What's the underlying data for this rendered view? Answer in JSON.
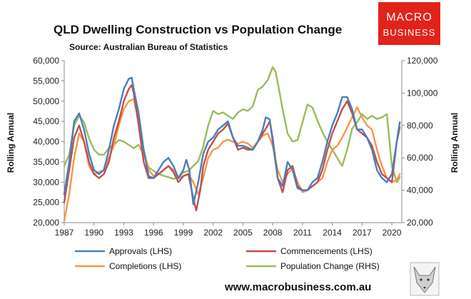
{
  "chart_data": {
    "type": "line",
    "title": "QLD Dwelling Construction vs Population Change",
    "subtitle": "Source: Australian Bureau of Statistics",
    "ylabel_left": "Rolling Annual",
    "ylabel_right": "Rolling Annual",
    "xlim": [
      1987,
      2021
    ],
    "x_ticks": [
      1987,
      1990,
      1993,
      1996,
      1999,
      2002,
      2005,
      2008,
      2011,
      2014,
      2017,
      2020
    ],
    "ylim_left": [
      20000,
      60000
    ],
    "y_ticks_left": [
      20000,
      25000,
      30000,
      35000,
      40000,
      45000,
      50000,
      55000,
      60000
    ],
    "y_ticks_left_labels": [
      "20,000",
      "25,000",
      "30,000",
      "35,000",
      "40,000",
      "45,000",
      "50,000",
      "55,000",
      "60,000"
    ],
    "ylim_right": [
      20000,
      120000
    ],
    "y_ticks_right": [
      20000,
      40000,
      60000,
      80000,
      100000,
      120000
    ],
    "y_ticks_right_labels": [
      "20,000",
      "40,000",
      "60,000",
      "80,000",
      "100,000",
      "120,000"
    ],
    "grid": false,
    "legend_position": "bottom",
    "series": [
      {
        "name": "Approvals (LHS)",
        "axis": "left",
        "color": "#4a7ebb",
        "points": [
          [
            1987,
            27000
          ],
          [
            1987.5,
            35000
          ],
          [
            1988,
            45000
          ],
          [
            1988.5,
            47000
          ],
          [
            1989,
            43000
          ],
          [
            1989.5,
            37000
          ],
          [
            1990,
            33000
          ],
          [
            1990.5,
            32000
          ],
          [
            1991,
            33000
          ],
          [
            1991.5,
            38000
          ],
          [
            1992,
            44000
          ],
          [
            1992.5,
            48000
          ],
          [
            1993,
            53000
          ],
          [
            1993.5,
            55500
          ],
          [
            1993.8,
            55800
          ],
          [
            1994,
            53000
          ],
          [
            1994.5,
            47000
          ],
          [
            1995,
            38000
          ],
          [
            1995.5,
            31500
          ],
          [
            1996,
            31000
          ],
          [
            1996.5,
            33000
          ],
          [
            1997,
            35000
          ],
          [
            1997.5,
            36000
          ],
          [
            1998,
            34000
          ],
          [
            1998.5,
            31000
          ],
          [
            1999,
            33000
          ],
          [
            1999.3,
            35500
          ],
          [
            1999.6,
            33000
          ],
          [
            2000,
            24500
          ],
          [
            2000.5,
            30000
          ],
          [
            2001,
            37000
          ],
          [
            2001.5,
            40000
          ],
          [
            2002,
            41000
          ],
          [
            2002.5,
            43000
          ],
          [
            2003,
            44000
          ],
          [
            2003.5,
            45000
          ],
          [
            2004,
            41000
          ],
          [
            2004.5,
            39000
          ],
          [
            2005,
            39000
          ],
          [
            2005.5,
            38500
          ],
          [
            2006,
            38000
          ],
          [
            2006.5,
            40000
          ],
          [
            2007,
            43000
          ],
          [
            2007.3,
            46000
          ],
          [
            2007.7,
            45500
          ],
          [
            2008,
            40000
          ],
          [
            2008.5,
            31000
          ],
          [
            2009,
            29000
          ],
          [
            2009.5,
            35000
          ],
          [
            2010,
            33000
          ],
          [
            2010.5,
            28500
          ],
          [
            2011,
            28000
          ],
          [
            2011.5,
            28000
          ],
          [
            2012,
            30000
          ],
          [
            2012.5,
            31000
          ],
          [
            2013,
            35000
          ],
          [
            2013.5,
            40000
          ],
          [
            2014,
            44000
          ],
          [
            2014.5,
            47000
          ],
          [
            2015,
            51000
          ],
          [
            2015.5,
            51000
          ],
          [
            2016,
            48000
          ],
          [
            2016.5,
            43000
          ],
          [
            2017,
            43000
          ],
          [
            2017.5,
            41000
          ],
          [
            2018,
            38000
          ],
          [
            2018.5,
            33000
          ],
          [
            2019,
            31000
          ],
          [
            2019.5,
            30000
          ],
          [
            2020,
            32000
          ],
          [
            2020.5,
            40000
          ],
          [
            2020.8,
            44800
          ]
        ]
      },
      {
        "name": "Commencements (LHS)",
        "axis": "left",
        "color": "#c0504d",
        "points": [
          [
            1987,
            25000
          ],
          [
            1987.5,
            33000
          ],
          [
            1988,
            41000
          ],
          [
            1988.5,
            44000
          ],
          [
            1989,
            40000
          ],
          [
            1989.5,
            35000
          ],
          [
            1990,
            32000
          ],
          [
            1990.5,
            31000
          ],
          [
            1991,
            32000
          ],
          [
            1991.5,
            35000
          ],
          [
            1992,
            41000
          ],
          [
            1992.5,
            45000
          ],
          [
            1993,
            50000
          ],
          [
            1993.5,
            53000
          ],
          [
            1993.8,
            54000
          ],
          [
            1994,
            52000
          ],
          [
            1994.5,
            44000
          ],
          [
            1995,
            35000
          ],
          [
            1995.5,
            31000
          ],
          [
            1996,
            31000
          ],
          [
            1996.5,
            32000
          ],
          [
            1997,
            33000
          ],
          [
            1997.5,
            34000
          ],
          [
            1998,
            32500
          ],
          [
            1998.5,
            30000
          ],
          [
            1999,
            31500
          ],
          [
            1999.5,
            32000
          ],
          [
            2000,
            26000
          ],
          [
            2000.3,
            23000
          ],
          [
            2000.7,
            28000
          ],
          [
            2001,
            34000
          ],
          [
            2001.5,
            38000
          ],
          [
            2002,
            40000
          ],
          [
            2002.5,
            42000
          ],
          [
            2003,
            43000
          ],
          [
            2003.5,
            44500
          ],
          [
            2004,
            41000
          ],
          [
            2004.5,
            38000
          ],
          [
            2005,
            38500
          ],
          [
            2005.5,
            38000
          ],
          [
            2006,
            38000
          ],
          [
            2006.5,
            40000
          ],
          [
            2007,
            42000
          ],
          [
            2007.5,
            44000
          ],
          [
            2007.7,
            45000
          ],
          [
            2008,
            41000
          ],
          [
            2008.5,
            31000
          ],
          [
            2009,
            27500
          ],
          [
            2009.5,
            33000
          ],
          [
            2010,
            34000
          ],
          [
            2010.5,
            29000
          ],
          [
            2011,
            28000
          ],
          [
            2011.5,
            28000
          ],
          [
            2012,
            29000
          ],
          [
            2012.5,
            30000
          ],
          [
            2013,
            33000
          ],
          [
            2013.5,
            38000
          ],
          [
            2014,
            42000
          ],
          [
            2014.5,
            45000
          ],
          [
            2015,
            48000
          ],
          [
            2015.5,
            50000
          ],
          [
            2016,
            47000
          ],
          [
            2016.5,
            43000
          ],
          [
            2017,
            42000
          ],
          [
            2017.5,
            41000
          ],
          [
            2018,
            39000
          ],
          [
            2018.5,
            35000
          ],
          [
            2019,
            32000
          ],
          [
            2019.5,
            31000
          ],
          [
            2020,
            30000
          ],
          [
            2020.5,
            40000
          ],
          [
            2020.8,
            43500
          ]
        ]
      },
      {
        "name": "Completions (LHS)",
        "axis": "left",
        "color": "#f79646",
        "points": [
          [
            1987,
            20500
          ],
          [
            1987.5,
            27000
          ],
          [
            1988,
            36000
          ],
          [
            1988.5,
            42000
          ],
          [
            1989,
            40000
          ],
          [
            1989.5,
            34000
          ],
          [
            1990,
            32000
          ],
          [
            1990.5,
            32500
          ],
          [
            1991,
            33000
          ],
          [
            1991.5,
            36000
          ],
          [
            1992,
            39000
          ],
          [
            1992.5,
            44000
          ],
          [
            1993,
            48000
          ],
          [
            1993.5,
            50000
          ],
          [
            1994,
            50500
          ],
          [
            1994.5,
            45000
          ],
          [
            1995,
            38000
          ],
          [
            1995.5,
            33000
          ],
          [
            1996,
            31500
          ],
          [
            1996.5,
            32000
          ],
          [
            1997,
            33000
          ],
          [
            1997.5,
            34000
          ],
          [
            1998,
            33000
          ],
          [
            1998.5,
            31000
          ],
          [
            1999,
            31500
          ],
          [
            1999.5,
            32000
          ],
          [
            2000,
            30000
          ],
          [
            2000.5,
            27000
          ],
          [
            2001,
            31000
          ],
          [
            2001.5,
            36000
          ],
          [
            2002,
            38000
          ],
          [
            2002.5,
            38500
          ],
          [
            2003,
            40000
          ],
          [
            2003.5,
            40500
          ],
          [
            2004,
            40000
          ],
          [
            2004.5,
            39500
          ],
          [
            2005,
            40000
          ],
          [
            2005.5,
            39500
          ],
          [
            2006,
            38500
          ],
          [
            2006.5,
            40000
          ],
          [
            2007,
            41500
          ],
          [
            2007.5,
            42000
          ],
          [
            2008,
            39000
          ],
          [
            2008.5,
            33000
          ],
          [
            2009,
            30000
          ],
          [
            2009.5,
            32000
          ],
          [
            2010,
            33500
          ],
          [
            2010.5,
            30000
          ],
          [
            2011,
            27500
          ],
          [
            2011.5,
            28000
          ],
          [
            2012,
            29000
          ],
          [
            2012.5,
            30000
          ],
          [
            2013,
            31000
          ],
          [
            2013.5,
            35000
          ],
          [
            2014,
            38000
          ],
          [
            2014.5,
            39000
          ],
          [
            2015,
            41000
          ],
          [
            2015.5,
            43500
          ],
          [
            2016,
            46000
          ],
          [
            2016.5,
            48500
          ],
          [
            2017,
            46000
          ],
          [
            2017.5,
            44000
          ],
          [
            2018,
            43000
          ],
          [
            2018.5,
            38000
          ],
          [
            2019,
            34000
          ],
          [
            2019.5,
            31000
          ],
          [
            2020,
            30000
          ],
          [
            2020.5,
            30500
          ],
          [
            2020.8,
            32000
          ]
        ]
      },
      {
        "name": "Population Change (RHS)",
        "axis": "right",
        "color": "#9bbb59",
        "points": [
          [
            1987,
            55000
          ],
          [
            1987.5,
            62000
          ],
          [
            1988,
            80000
          ],
          [
            1988.5,
            86000
          ],
          [
            1989,
            82000
          ],
          [
            1989.5,
            72000
          ],
          [
            1990,
            65000
          ],
          [
            1990.5,
            62000
          ],
          [
            1991,
            62000
          ],
          [
            1991.5,
            66000
          ],
          [
            1992,
            68000
          ],
          [
            1992.5,
            71000
          ],
          [
            1993,
            70000
          ],
          [
            1993.5,
            68000
          ],
          [
            1994,
            66000
          ],
          [
            1994.5,
            68000
          ],
          [
            1995,
            62000
          ],
          [
            1995.5,
            54000
          ],
          [
            1996,
            52000
          ],
          [
            1996.5,
            50000
          ],
          [
            1997,
            49000
          ],
          [
            1997.5,
            48000
          ],
          [
            1998,
            47000
          ],
          [
            1998.5,
            48000
          ],
          [
            1999,
            51000
          ],
          [
            1999.5,
            52000
          ],
          [
            2000,
            55000
          ],
          [
            2000.5,
            58000
          ],
          [
            2001,
            67000
          ],
          [
            2001.5,
            80000
          ],
          [
            2002,
            89000
          ],
          [
            2002.5,
            87000
          ],
          [
            2003,
            88000
          ],
          [
            2003.5,
            86000
          ],
          [
            2004,
            84000
          ],
          [
            2004.5,
            88000
          ],
          [
            2005,
            90000
          ],
          [
            2005.5,
            89000
          ],
          [
            2006,
            92000
          ],
          [
            2006.5,
            102000
          ],
          [
            2007,
            104000
          ],
          [
            2007.5,
            108000
          ],
          [
            2008,
            116000
          ],
          [
            2008.3,
            113000
          ],
          [
            2008.7,
            100000
          ],
          [
            2009,
            90000
          ],
          [
            2009.5,
            75000
          ],
          [
            2010,
            70000
          ],
          [
            2010.5,
            71000
          ],
          [
            2011,
            82000
          ],
          [
            2011.5,
            93000
          ],
          [
            2012,
            91000
          ],
          [
            2012.5,
            83000
          ],
          [
            2013,
            76000
          ],
          [
            2013.5,
            70000
          ],
          [
            2014,
            65000
          ],
          [
            2014.5,
            60000
          ],
          [
            2015,
            55000
          ],
          [
            2015.5,
            65000
          ],
          [
            2016,
            78000
          ],
          [
            2016.5,
            82000
          ],
          [
            2017,
            87000
          ],
          [
            2017.5,
            84000
          ],
          [
            2018,
            86000
          ],
          [
            2018.5,
            84000
          ],
          [
            2019,
            85000
          ],
          [
            2019.5,
            87000
          ],
          [
            2020,
            55000
          ],
          [
            2020.5,
            45000
          ],
          [
            2020.8,
            48000
          ]
        ]
      }
    ]
  },
  "branding": {
    "logo_line1": "MACRO",
    "logo_line2": "BUSINESS",
    "logo_color": "#e2231a",
    "url": "www.macrobusiness.com.au"
  }
}
